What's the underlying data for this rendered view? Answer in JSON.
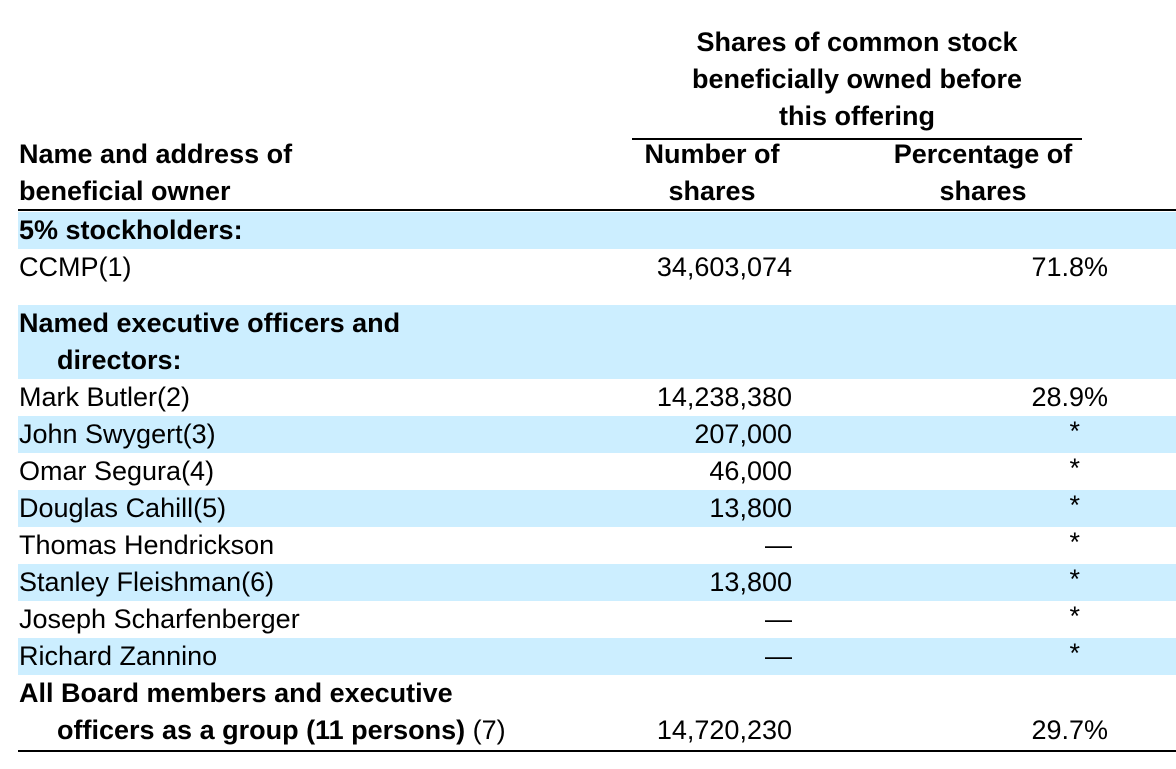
{
  "table": {
    "group_header": [
      "Shares of common stock",
      "beneficially owned before",
      "this offering"
    ],
    "col_name_header": [
      "Name and address of",
      "beneficial owner"
    ],
    "col_shares_header": [
      "Number of",
      "shares"
    ],
    "col_pct_header": [
      "Percentage of",
      "shares"
    ],
    "section_5pct": "5% stockholders:",
    "ccmp": {
      "name": "CCMP(1)",
      "shares": "34,603,074",
      "pct": "71.8%"
    },
    "section_officers_line1": "Named executive officers and",
    "section_officers_line2": "directors:",
    "officers": [
      {
        "name": "Mark Butler(2)",
        "shares": "14,238,380",
        "pct": "28.9%"
      },
      {
        "name": "John Swygert(3)",
        "shares": "207,000",
        "pct": "*"
      },
      {
        "name": "Omar Segura(4)",
        "shares": "46,000",
        "pct": "*"
      },
      {
        "name": "Douglas Cahill(5)",
        "shares": "13,800",
        "pct": "*"
      },
      {
        "name": "Thomas Hendrickson",
        "shares": "—",
        "pct": "*"
      },
      {
        "name": "Stanley Fleishman(6)",
        "shares": "13,800",
        "pct": "*"
      },
      {
        "name": "Joseph Scharfenberger",
        "shares": "—",
        "pct": "*"
      },
      {
        "name": "Richard Zannino",
        "shares": "—",
        "pct": "*"
      }
    ],
    "group_total_line1": "All Board members and executive",
    "group_total_line2": "officers as a group (11 persons)",
    "group_total_footnote": " (7)",
    "group_total_shares": "14,720,230",
    "group_total_pct": "29.7%"
  }
}
